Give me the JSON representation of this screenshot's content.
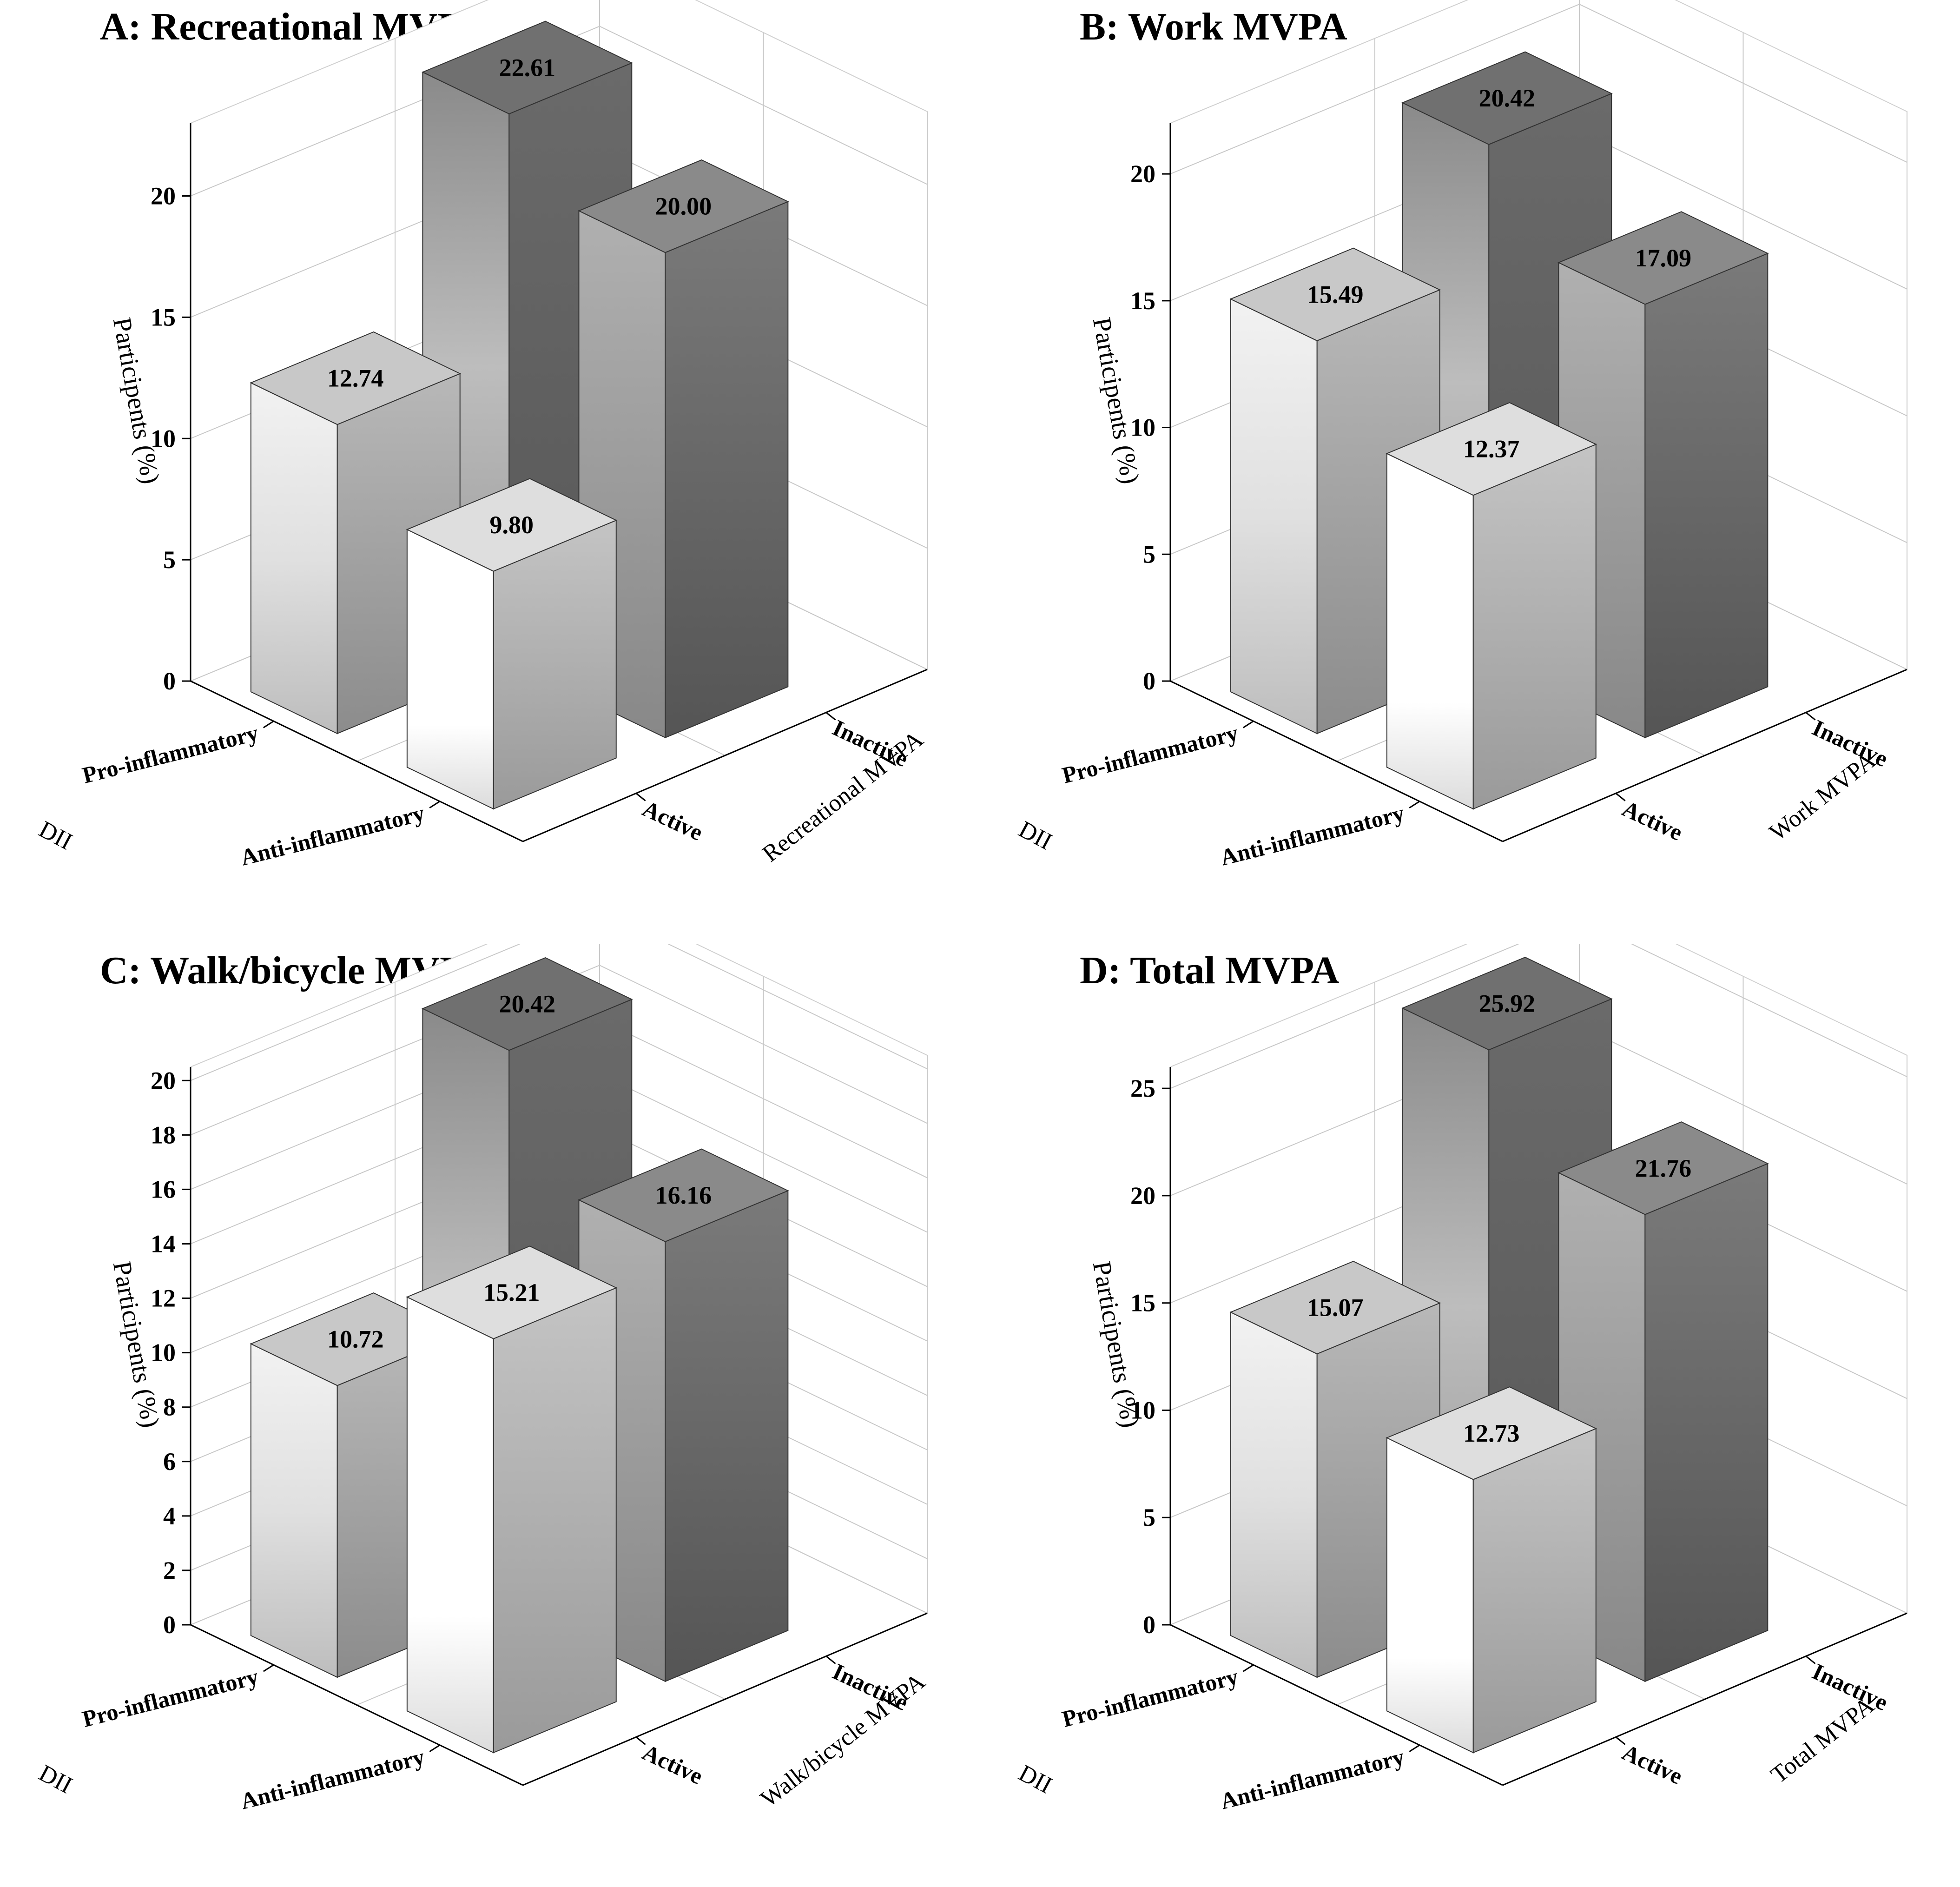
{
  "chart_data": [
    {
      "type": "bar3d",
      "title": "A: Recreational MVPA",
      "ylabel": "Participents (%)",
      "zlabel": "DII",
      "xlabel": "Recreational MVPA",
      "dii_categories": [
        "Pro-inflammatory",
        "Anti-inflammatory"
      ],
      "mvpa_categories": [
        "Active",
        "Inactive"
      ],
      "ylim": [
        0,
        23
      ],
      "yticks": [
        0,
        5,
        10,
        15,
        20
      ],
      "values": [
        {
          "dii": "Pro-inflammatory",
          "mvpa": "Active",
          "value": 12.74,
          "label": "12.74"
        },
        {
          "dii": "Pro-inflammatory",
          "mvpa": "Inactive",
          "value": 22.61,
          "label": "22.61"
        },
        {
          "dii": "Anti-inflammatory",
          "mvpa": "Active",
          "value": 9.8,
          "label": "9.80"
        },
        {
          "dii": "Anti-inflammatory",
          "mvpa": "Inactive",
          "value": 20.0,
          "label": "20.00"
        }
      ]
    },
    {
      "type": "bar3d",
      "title": "B: Work MVPA",
      "ylabel": "Participents (%)",
      "zlabel": "DII",
      "xlabel": "Work MVPA",
      "dii_categories": [
        "Pro-inflammatory",
        "Anti-inflammatory"
      ],
      "mvpa_categories": [
        "Active",
        "Inactive"
      ],
      "ylim": [
        0,
        22
      ],
      "yticks": [
        0,
        5,
        10,
        15,
        20
      ],
      "values": [
        {
          "dii": "Pro-inflammatory",
          "mvpa": "Active",
          "value": 15.49,
          "label": "15.49"
        },
        {
          "dii": "Pro-inflammatory",
          "mvpa": "Inactive",
          "value": 20.42,
          "label": "20.42"
        },
        {
          "dii": "Anti-inflammatory",
          "mvpa": "Active",
          "value": 12.37,
          "label": "12.37"
        },
        {
          "dii": "Anti-inflammatory",
          "mvpa": "Inactive",
          "value": 17.09,
          "label": "17.09"
        }
      ]
    },
    {
      "type": "bar3d",
      "title": "C: Walk/bicycle MVPA",
      "ylabel": "Participents (%)",
      "zlabel": "DII",
      "xlabel": "Walk/bicycle MVPA",
      "dii_categories": [
        "Pro-inflammatory",
        "Anti-inflammatory"
      ],
      "mvpa_categories": [
        "Active",
        "Inactive"
      ],
      "ylim": [
        0,
        20.5
      ],
      "yticks": [
        0,
        2,
        4,
        6,
        8,
        10,
        12,
        14,
        16,
        18,
        20
      ],
      "values": [
        {
          "dii": "Pro-inflammatory",
          "mvpa": "Active",
          "value": 10.72,
          "label": "10.72"
        },
        {
          "dii": "Pro-inflammatory",
          "mvpa": "Inactive",
          "value": 20.42,
          "label": "20.42"
        },
        {
          "dii": "Anti-inflammatory",
          "mvpa": "Active",
          "value": 15.21,
          "label": "15.21"
        },
        {
          "dii": "Anti-inflammatory",
          "mvpa": "Inactive",
          "value": 16.16,
          "label": "16.16"
        }
      ]
    },
    {
      "type": "bar3d",
      "title": "D: Total MVPA",
      "ylabel": "Participents (%)",
      "zlabel": "DII",
      "xlabel": "Total MVPA",
      "dii_categories": [
        "Pro-inflammatory",
        "Anti-inflammatory"
      ],
      "mvpa_categories": [
        "Active",
        "Inactive"
      ],
      "ylim": [
        0,
        26
      ],
      "yticks": [
        0,
        5,
        10,
        15,
        20,
        25
      ],
      "values": [
        {
          "dii": "Pro-inflammatory",
          "mvpa": "Active",
          "value": 15.07,
          "label": "15.07"
        },
        {
          "dii": "Pro-inflammatory",
          "mvpa": "Inactive",
          "value": 25.92,
          "label": "25.92"
        },
        {
          "dii": "Anti-inflammatory",
          "mvpa": "Active",
          "value": 12.73,
          "label": "12.73"
        },
        {
          "dii": "Anti-inflammatory",
          "mvpa": "Inactive",
          "value": 21.76,
          "label": "21.76"
        }
      ]
    }
  ]
}
